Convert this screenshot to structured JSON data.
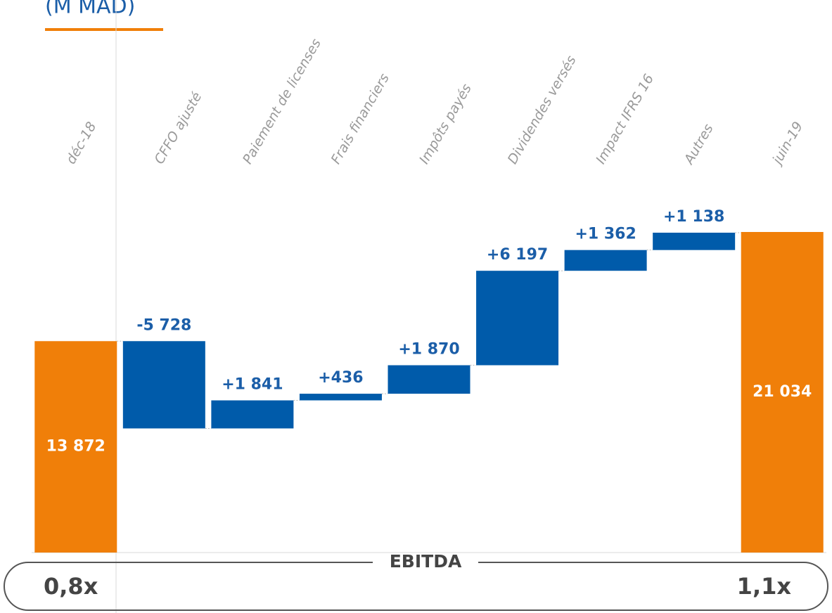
{
  "chart_data": {
    "type": "waterfall",
    "title": "(M MAD)",
    "categories": [
      "déc-18",
      "CFFO ajusté",
      "Paiement de licenses",
      "Frais financiers",
      "Impôts payés",
      "Dividendes versés",
      "Impact IFRS 16",
      "Autres",
      "juin-19"
    ],
    "values": [
      13872,
      -5728,
      1841,
      436,
      1870,
      6197,
      1362,
      1138,
      21034
    ],
    "value_labels": [
      "13 872",
      "-5 728",
      "+1 841",
      "+436",
      "+1 870",
      "+6 197",
      "+1 362",
      "+1 138",
      "21 034"
    ],
    "total_color": "#f07f09",
    "delta_color": "#005baa",
    "annotations": {
      "ebitda": "EBITDA",
      "start_multiple": "0,8x",
      "end_multiple": "1,1x"
    }
  }
}
